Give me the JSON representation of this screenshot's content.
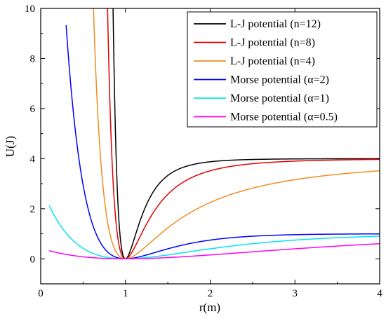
{
  "chart_data": {
    "type": "line",
    "title": "",
    "xlabel": "r(m)",
    "ylabel": "U(J)",
    "xlim": [
      0,
      4
    ],
    "ylim": [
      -1,
      10
    ],
    "xticks": [
      0,
      1,
      2,
      3,
      4
    ],
    "yticks": [
      0,
      2,
      4,
      6,
      8,
      10
    ],
    "grid": false,
    "legend_position": "top-right",
    "series": [
      {
        "name": "L-J potential (n=12)",
        "formula": "lj",
        "n": 12,
        "color": "#000000",
        "xmin": 0.85
      },
      {
        "name": "L-J potential (n=8)",
        "formula": "lj",
        "n": 8,
        "color": "#e00000",
        "xmin": 0.78
      },
      {
        "name": "L-J potential (n=4)",
        "formula": "lj",
        "n": 4,
        "color": "#f08c1e",
        "xmin": 0.6
      },
      {
        "name": "Morse potential (α=2)",
        "formula": "morse",
        "alpha": 2,
        "color": "#0000ff",
        "xmin": 0.3
      },
      {
        "name": "Morse potential (α=1)",
        "formula": "morse",
        "alpha": 1,
        "color": "#00e5ee",
        "xmin": 0.1
      },
      {
        "name": "Morse potential (α=0.5)",
        "formula": "morse",
        "alpha": 0.5,
        "color": "#ff00ff",
        "xmin": 0.1
      }
    ]
  }
}
